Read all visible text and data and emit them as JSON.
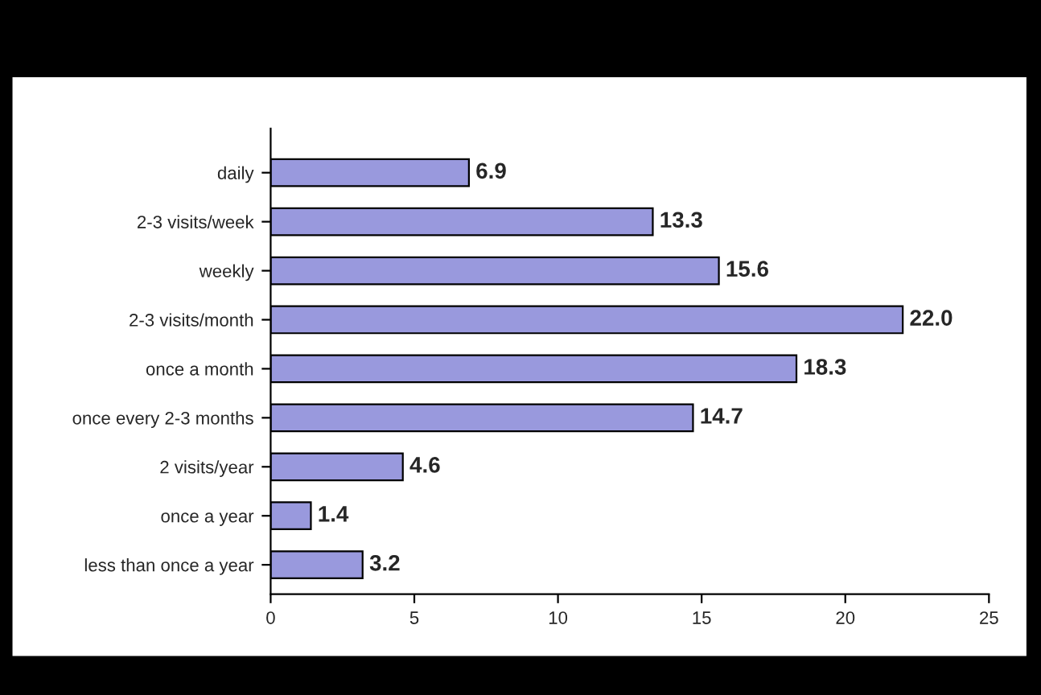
{
  "chart_data": {
    "type": "bar",
    "orientation": "horizontal",
    "categories": [
      "daily",
      "2-3 visits/week",
      "weekly",
      "2-3 visits/month",
      "once a month",
      "once every 2-3 months",
      "2 visits/year",
      "once a year",
      "less than once a year"
    ],
    "values": [
      6.9,
      13.3,
      15.6,
      22.0,
      18.3,
      14.7,
      4.6,
      1.4,
      3.2
    ],
    "value_labels": [
      "6.9",
      "13.3",
      "15.6",
      "22.0",
      "18.3",
      "14.7",
      "4.6",
      "1.4",
      "3.2"
    ],
    "color": "#9999dd",
    "xlim": [
      0,
      25
    ],
    "xticks": [
      0,
      5,
      10,
      15,
      20,
      25
    ],
    "grid": false
  }
}
